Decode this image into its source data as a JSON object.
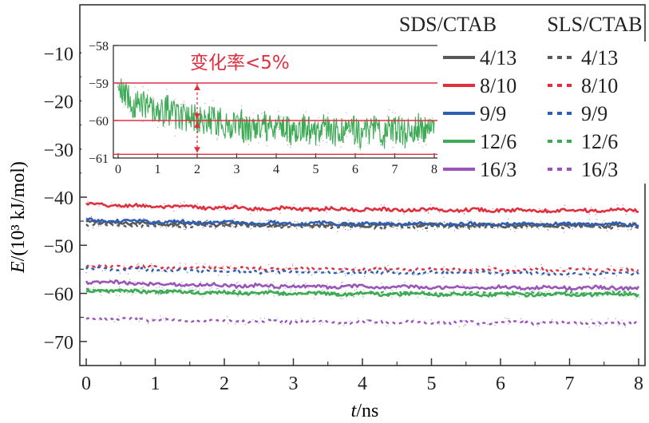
{
  "chart_data": [
    {
      "type": "line",
      "title": "",
      "xlabel_italic": "t",
      "xlabel_rest": "/ns",
      "ylabel_italic": "E",
      "ylabel_rest": "/(10³ kJ/mol)",
      "xlim": [
        0,
        8
      ],
      "ylim": [
        -75,
        0
      ],
      "xticks": [
        0,
        1,
        2,
        3,
        4,
        5,
        6,
        7,
        8
      ],
      "yticks": [
        -10,
        -20,
        -30,
        -40,
        -50,
        -60,
        -70
      ],
      "legend": {
        "position": "top-right",
        "header_solid": "SDS/CTAB",
        "header_dashed": "SLS/CTAB"
      },
      "series": [
        {
          "name": "4/13",
          "group": "SDS/CTAB",
          "style": "solid",
          "color": "#5a5a5a",
          "start": -45.2,
          "end": -45.9,
          "noise": 0.35
        },
        {
          "name": "8/10",
          "group": "SDS/CTAB",
          "style": "solid",
          "color": "#e0303f",
          "start": -41.5,
          "end": -42.8,
          "noise": 0.35
        },
        {
          "name": "9/9",
          "group": "SDS/CTAB",
          "style": "solid",
          "color": "#2f5fb3",
          "start": -44.8,
          "end": -45.7,
          "noise": 0.35
        },
        {
          "name": "12/6",
          "group": "SDS/CTAB",
          "style": "solid",
          "color": "#3daa55",
          "start": -59.3,
          "end": -60.3,
          "noise": 0.35
        },
        {
          "name": "16/3",
          "group": "SDS/CTAB",
          "style": "solid",
          "color": "#9a55b8",
          "start": -57.6,
          "end": -58.9,
          "noise": 0.35
        },
        {
          "name": "4/13",
          "group": "SLS/CTAB",
          "style": "dashed",
          "color": "#5a5a5a",
          "start": -45.8,
          "end": -46.2,
          "noise": 0.3
        },
        {
          "name": "8/10",
          "group": "SLS/CTAB",
          "style": "dashed",
          "color": "#e0303f",
          "start": -54.3,
          "end": -55.1,
          "noise": 0.3
        },
        {
          "name": "9/9",
          "group": "SLS/CTAB",
          "style": "dashed",
          "color": "#2f5fb3",
          "start": -54.8,
          "end": -55.9,
          "noise": 0.3
        },
        {
          "name": "12/6",
          "group": "SLS/CTAB",
          "style": "dashed",
          "color": "#3daa55",
          "start": -59.5,
          "end": -60.0,
          "noise": 0.3
        },
        {
          "name": "16/3",
          "group": "SLS/CTAB",
          "style": "dashed",
          "color": "#9a55b8",
          "start": -65.2,
          "end": -66.2,
          "noise": 0.3
        }
      ]
    },
    {
      "type": "line",
      "role": "inset",
      "title": "",
      "xlim": [
        0,
        8
      ],
      "ylim": [
        -61,
        -58
      ],
      "xticks": [
        0,
        1,
        2,
        3,
        4,
        5,
        6,
        7,
        8
      ],
      "yticks": [
        -58,
        -59,
        -60,
        -61
      ],
      "series": [
        {
          "name": "12/6 SDS/CTAB",
          "color": "#3daa55",
          "start": -59.3,
          "end": -60.3,
          "noise": 0.35
        }
      ],
      "hlines": [
        {
          "y": -59.0,
          "color": "#e0303f"
        },
        {
          "y": -60.0,
          "color": "#e0303f"
        },
        {
          "y": -60.9,
          "color": "#e0303f"
        }
      ],
      "marker_x": 2,
      "annotation": "变化率<5%"
    }
  ]
}
